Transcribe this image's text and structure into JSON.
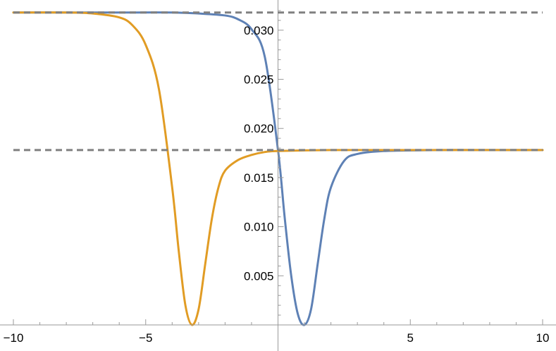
{
  "chart_data": {
    "type": "line",
    "title": "",
    "xlabel": "",
    "ylabel": "",
    "xlim": [
      -10,
      10
    ],
    "ylim": [
      0,
      0.0325
    ],
    "x_ticks": [
      -10,
      -5,
      5,
      10
    ],
    "x_tick_labels": [
      "−10",
      "−5",
      "5",
      "10"
    ],
    "y_ticks": [
      0.005,
      0.01,
      0.015,
      0.02,
      0.025,
      0.03
    ],
    "y_tick_labels": [
      "0.005",
      "0.010",
      "0.015",
      "0.020",
      "0.025",
      "0.030"
    ],
    "grid": false,
    "reference_lines": [
      {
        "y": 0.0318,
        "style": "dashed",
        "color": "#808080"
      },
      {
        "y": 0.0178,
        "style": "dashed",
        "color": "#808080"
      }
    ],
    "series": [
      {
        "color": "#5E81B5",
        "x": [
          -10,
          -8,
          -6,
          -4,
          -3,
          -2,
          -1.5,
          -1,
          -0.5,
          0,
          0.25,
          0.5,
          0.75,
          1.0,
          1.25,
          1.5,
          1.75,
          2.0,
          2.5,
          3,
          4,
          6,
          8,
          10
        ],
        "y": [
          0.0318,
          0.0318,
          0.0318,
          0.0318,
          0.0317,
          0.0315,
          0.0311,
          0.0301,
          0.0273,
          0.0178,
          0.011,
          0.005,
          0.0011,
          0.0,
          0.0016,
          0.0062,
          0.0108,
          0.014,
          0.0167,
          0.0174,
          0.0177,
          0.0178,
          0.0178,
          0.0178
        ]
      },
      {
        "color": "#E19C24",
        "x": [
          -10,
          -8,
          -7,
          -6,
          -5.5,
          -5,
          -4.5,
          -4,
          -3.75,
          -3.5,
          -3.25,
          -3.0,
          -2.75,
          -2.5,
          -2.25,
          -2.0,
          -1.5,
          -1,
          -0.5,
          0,
          2,
          5,
          10
        ],
        "y": [
          0.0318,
          0.0318,
          0.0317,
          0.0313,
          0.0305,
          0.0285,
          0.024,
          0.014,
          0.0075,
          0.002,
          0.0,
          0.0016,
          0.0062,
          0.0108,
          0.014,
          0.0157,
          0.0168,
          0.0173,
          0.0176,
          0.0177,
          0.0178,
          0.0178,
          0.0178
        ]
      }
    ]
  }
}
